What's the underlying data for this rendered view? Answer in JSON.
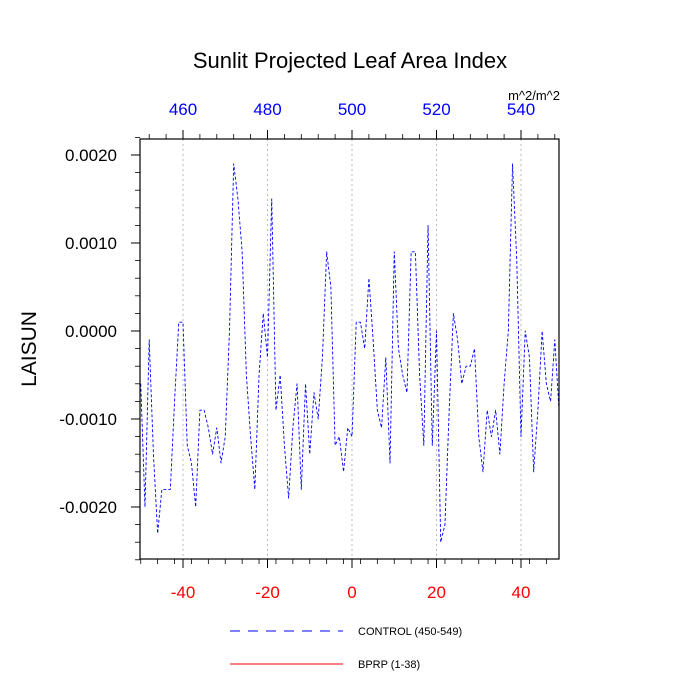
{
  "chart_data": {
    "type": "line",
    "title": "Sunlit Projected Leaf Area Index",
    "ylabel": "LAISUN",
    "units": "m^2/m^2",
    "xlim": [
      -50,
      49
    ],
    "ylim": [
      -0.0026,
      0.0022
    ],
    "bottom_axis": {
      "ticks": [
        -40,
        -20,
        0,
        20,
        40
      ],
      "labels": [
        "-40",
        "-20",
        "0",
        "20",
        "40"
      ],
      "color": "#ff0000"
    },
    "top_axis": {
      "ticks": [
        460,
        480,
        500,
        520,
        540
      ],
      "labels": [
        "460",
        "480",
        "500",
        "520",
        "540"
      ],
      "color": "#0000ff"
    },
    "y_ticks": [
      0.002,
      0.001,
      0.0,
      -0.001,
      -0.002
    ],
    "y_tick_labels": [
      "0.0020",
      "0.0010",
      "0.0000",
      "-0.0010",
      "-0.0020"
    ],
    "grid": "vertical dotted at major x ticks",
    "legend_position": "bottom-center",
    "series": [
      {
        "name": "CONTROL (450-549)",
        "color": "#0000ff",
        "style": "dashed",
        "x": [
          -50,
          -49,
          -48,
          -47,
          -46,
          -45,
          -44,
          -43,
          -42,
          -41,
          -40,
          -39,
          -38,
          -37,
          -36,
          -35,
          -34,
          -33,
          -32,
          -31,
          -30,
          -29,
          -28,
          -27,
          -26,
          -25,
          -24,
          -23,
          -22,
          -21,
          -20,
          -19,
          -18,
          -17,
          -16,
          -15,
          -14,
          -13,
          -12,
          -11,
          -10,
          -9,
          -8,
          -7,
          -6,
          -5,
          -4,
          -3,
          -2,
          -1,
          0,
          1,
          2,
          3,
          4,
          5,
          6,
          7,
          8,
          9,
          10,
          11,
          12,
          13,
          14,
          15,
          16,
          17,
          18,
          19,
          20,
          21,
          22,
          23,
          24,
          25,
          26,
          27,
          28,
          29,
          30,
          31,
          32,
          33,
          34,
          35,
          36,
          37,
          38,
          39,
          40,
          41,
          42,
          43,
          44,
          45,
          46,
          47,
          48,
          49
        ],
        "y": [
          -0.0006,
          -0.002,
          -0.0001,
          -0.0014,
          -0.0023,
          -0.0018,
          -0.0018,
          -0.0018,
          -0.0008,
          0.0001,
          0.0001,
          -0.0013,
          -0.0015,
          -0.002,
          -0.0009,
          -0.0009,
          -0.0011,
          -0.0014,
          -0.0011,
          -0.0015,
          -0.0012,
          0.0,
          0.0019,
          0.0015,
          0.0009,
          -0.0005,
          -0.0012,
          -0.0018,
          -0.0005,
          0.0002,
          -0.0003,
          0.0015,
          -0.0009,
          -0.0005,
          -0.0013,
          -0.0019,
          -0.0011,
          -0.0006,
          -0.0018,
          -0.0006,
          -0.0014,
          -0.0007,
          -0.001,
          -0.0003,
          0.0009,
          0.0005,
          -0.0013,
          -0.0012,
          -0.0016,
          -0.0011,
          -0.0012,
          0.0001,
          0.0001,
          -0.0002,
          0.0006,
          -0.0001,
          -0.0009,
          -0.0011,
          -0.0003,
          -0.0015,
          0.0009,
          -0.0002,
          -0.0005,
          -0.0007,
          0.0009,
          0.0009,
          -0.0005,
          -0.0013,
          0.0012,
          -0.0013,
          0.0,
          -0.0024,
          -0.0022,
          -0.0009,
          0.0002,
          -0.0001,
          -0.0006,
          -0.0004,
          -0.0004,
          -0.0002,
          -0.0012,
          -0.0016,
          -0.0009,
          -0.0012,
          -0.0009,
          -0.0014,
          -0.0006,
          0.0,
          0.0019,
          0.0008,
          -0.0012,
          0.0,
          -0.0003,
          -0.0016,
          -0.0009,
          0.0,
          -0.0006,
          -0.0008,
          -0.0001,
          -0.0009
        ]
      },
      {
        "name": "BPRP (1-38)",
        "color": "#ff0000",
        "style": "solid",
        "x": [],
        "y": []
      }
    ]
  }
}
